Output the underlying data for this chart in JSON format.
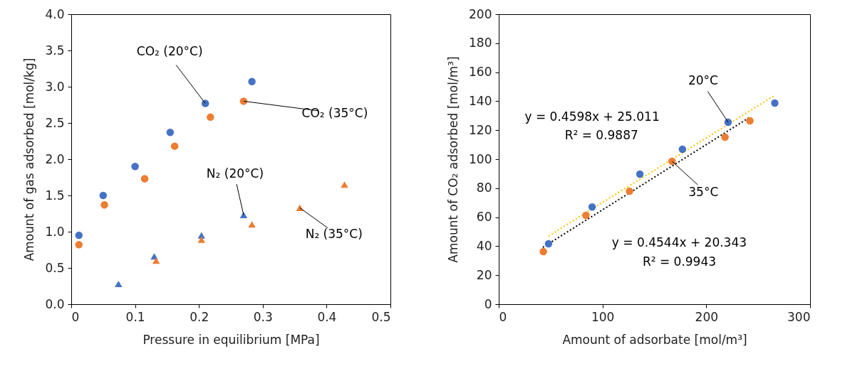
{
  "chart_data": [
    {
      "type": "scatter",
      "xlabel": "Pressure in equilibrium [MPa]",
      "ylabel": "Amount of gas adsorbed [mol/kg]",
      "xlim": [
        0,
        0.5
      ],
      "ylim": [
        0,
        4
      ],
      "xticks": [
        0,
        0.1,
        0.2,
        0.3,
        0.4,
        0.5
      ],
      "yticks": [
        {
          "value": 0,
          "label": "0.0"
        },
        0.5,
        {
          "value": 1,
          "label": "1.0"
        },
        1.5,
        {
          "value": 2,
          "label": "2.0"
        },
        2.5,
        {
          "value": 3,
          "label": "3.0"
        },
        3.5,
        {
          "value": 4,
          "label": "4.0"
        }
      ],
      "grid": false,
      "series": [
        {
          "marker": "circle",
          "color": "#4472c4",
          "x": [
            0.012,
            0.05,
            0.1,
            0.155,
            0.21,
            0.283
          ],
          "values": [
            0.95,
            1.5,
            1.9,
            2.37,
            2.77,
            3.07
          ]
        },
        {
          "marker": "circle",
          "color": "#ed7d31",
          "x": [
            0.012,
            0.052,
            0.115,
            0.162,
            0.218,
            0.27
          ],
          "values": [
            0.82,
            1.37,
            1.73,
            2.18,
            2.58,
            2.8
          ]
        },
        {
          "marker": "triangle",
          "color": "#4472c4",
          "x": [
            0.074,
            0.13,
            0.204,
            0.27
          ],
          "values": [
            0.28,
            0.66,
            0.95,
            1.23
          ]
        },
        {
          "marker": "triangle",
          "color": "#ed7d31",
          "x": [
            0.133,
            0.204,
            0.283,
            0.358,
            0.428
          ],
          "values": [
            0.6,
            0.89,
            1.1,
            1.33,
            1.65
          ]
        }
      ],
      "annotations": [
        {
          "text": "CO₂ (20°C)",
          "x": 0.21,
          "y": 2.77
        },
        {
          "text": "CO₂ (35°C)",
          "x": 0.27,
          "y": 2.8
        },
        {
          "text": "N₂ (20°C)",
          "x": 0.27,
          "y": 1.23
        },
        {
          "text": "N₂ (35°C)",
          "x": 0.358,
          "y": 1.33
        }
      ]
    },
    {
      "type": "scatter",
      "xlabel": "Amount of adsorbate [mol/m³]",
      "ylabel": "Amount of CO₂ adsorbed [mol/m³]",
      "xlim": [
        0,
        300
      ],
      "ylim": [
        0,
        200
      ],
      "xticks": [
        0,
        100,
        200,
        300
      ],
      "yticks": [
        0,
        20,
        40,
        60,
        80,
        100,
        120,
        140,
        160,
        180,
        200
      ],
      "grid": false,
      "series": [
        {
          "type": "line",
          "line_style": "dotted",
          "color": "#ffc000",
          "x": [
            48,
            265
          ],
          "values": [
            47,
            143.6
          ]
        },
        {
          "type": "line",
          "line_style": "dotted",
          "color": "#000000",
          "x": [
            42.5,
            242
          ],
          "values": [
            39.2,
            129
          ]
        },
        {
          "marker": "circle",
          "color": "#4472c4",
          "x": [
            48,
            90,
            136,
            177,
            221,
            266
          ],
          "values": [
            41.7,
            67,
            89.7,
            106.9,
            125.5,
            138.7
          ]
        },
        {
          "marker": "circle",
          "color": "#ed7d31",
          "x": [
            43,
            84,
            126,
            167,
            218,
            242
          ],
          "values": [
            36.3,
            61.3,
            77.9,
            98.5,
            115.2,
            126.5
          ]
        }
      ],
      "annotations": [
        {
          "text": "20°C",
          "x": 221,
          "y": 125.5
        },
        {
          "text": "35°C",
          "x": 167,
          "y": 98.5
        },
        "y = 0.4598x + 25.011",
        "R² = 0.9887",
        "y = 0.4544x + 20.343",
        "R² = 0.9943"
      ]
    }
  ]
}
